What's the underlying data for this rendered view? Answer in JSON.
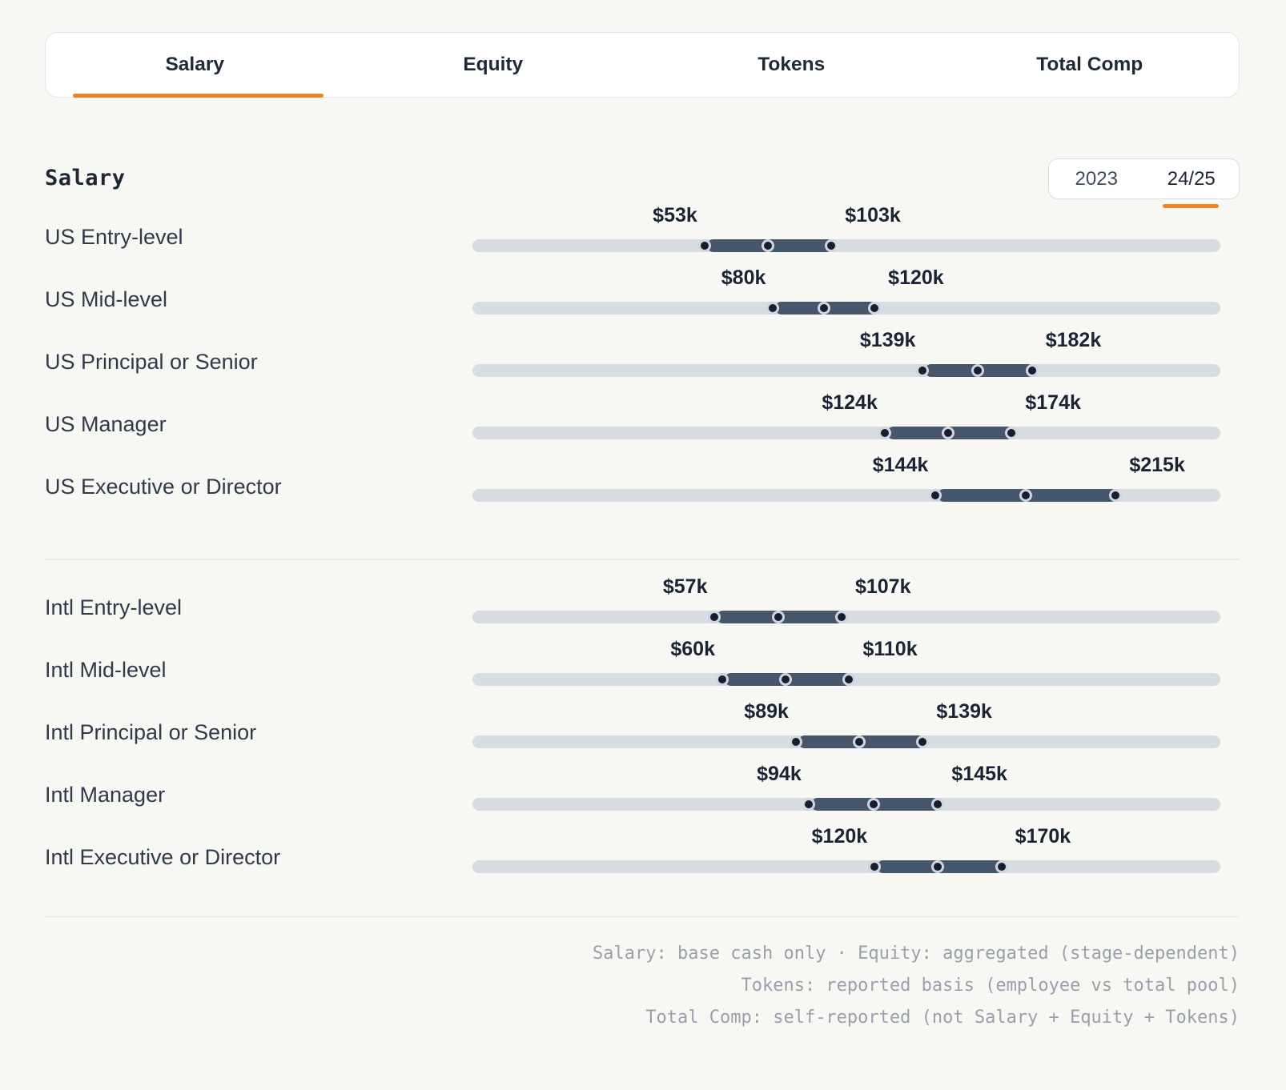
{
  "tabs": [
    {
      "label": "Salary",
      "active": true
    },
    {
      "label": "Equity",
      "active": false
    },
    {
      "label": "Tokens",
      "active": false
    },
    {
      "label": "Total Comp",
      "active": false
    }
  ],
  "section": {
    "heading": "Salary"
  },
  "period_toggle": {
    "options": [
      "2023",
      "24/25"
    ],
    "active": "24/25"
  },
  "groups": [
    {
      "rows": [
        {
          "label": "US Entry-level",
          "min": 53,
          "max": 103,
          "min_label": "$53k",
          "max_label": "$103k"
        },
        {
          "label": "US Mid-level",
          "min": 80,
          "max": 120,
          "min_label": "$80k",
          "max_label": "$120k"
        },
        {
          "label": "US Principal or Senior",
          "min": 139,
          "max": 182,
          "min_label": "$139k",
          "max_label": "$182k"
        },
        {
          "label": "US Manager",
          "min": 124,
          "max": 174,
          "min_label": "$124k",
          "max_label": "$174k"
        },
        {
          "label": "US Executive or Director",
          "min": 144,
          "max": 215,
          "min_label": "$144k",
          "max_label": "$215k"
        }
      ]
    },
    {
      "rows": [
        {
          "label": "Intl Entry-level",
          "min": 57,
          "max": 107,
          "min_label": "$57k",
          "max_label": "$107k"
        },
        {
          "label": "Intl Mid-level",
          "min": 60,
          "max": 110,
          "min_label": "$60k",
          "max_label": "$110k"
        },
        {
          "label": "Intl Principal or Senior",
          "min": 89,
          "max": 139,
          "min_label": "$89k",
          "max_label": "$139k"
        },
        {
          "label": "Intl Manager",
          "min": 94,
          "max": 145,
          "min_label": "$94k",
          "max_label": "$145k"
        },
        {
          "label": "Intl Executive or Director",
          "min": 120,
          "max": 170,
          "min_label": "$120k",
          "max_label": "$170k"
        }
      ]
    }
  ],
  "footnotes": [
    "Salary: base cash only · Equity: aggregated (stage-dependent)",
    "Tokens: reported basis (employee vs total pool)",
    "Total Comp: self-reported (not Salary + Equity + Tokens)"
  ],
  "colors": {
    "accent_orange": "#f5801f",
    "track_gray": "#d8dde3",
    "range_bar_slate": "#46566b",
    "handle_fill_navy": "#151f2e",
    "handle_ring_gray": "#cfd6e0"
  }
}
